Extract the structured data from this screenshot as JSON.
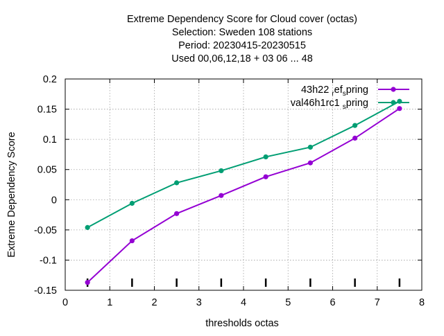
{
  "chart_data": {
    "type": "line",
    "title_lines": [
      "Extreme Dependency Score  for Cloud cover (octas)",
      "Selection: Sweden    108 stations",
      "Period: 20230415-20230515",
      "Used  00,06,12,18  + 03 06 ... 48"
    ],
    "xlabel": "thresholds octas",
    "ylabel": "Extreme Dependency Score",
    "xlim": [
      0,
      8
    ],
    "ylim": [
      -0.15,
      0.2
    ],
    "xticks": [
      0,
      1,
      2,
      3,
      4,
      5,
      6,
      7,
      8
    ],
    "xtick_labels": [
      "0",
      "1",
      "2",
      "3",
      "4",
      "5",
      "6",
      "7",
      "8"
    ],
    "yticks": [
      -0.15,
      -0.1,
      -0.05,
      0,
      0.05,
      0.1,
      0.15,
      0.2
    ],
    "ytick_labels": [
      "-0.15",
      "-0.1",
      "-0.05",
      "0",
      "0.05",
      "0.1",
      "0.15",
      "0.2"
    ],
    "grid": true,
    "legend_position": "top-right",
    "threshold_marks_x": [
      0.5,
      1.5,
      2.5,
      3.5,
      4.5,
      5.5,
      6.5,
      7.5
    ],
    "x": [
      0.5,
      1.5,
      2.5,
      3.5,
      4.5,
      5.5,
      6.5,
      7.5
    ],
    "series": [
      {
        "name": "43h22_ref_spring",
        "legend_parts": [
          "43h22 ",
          "r",
          "ef",
          "s",
          "pring"
        ],
        "color": "#9400d3",
        "values": [
          -0.137,
          -0.068,
          -0.023,
          0.007,
          0.038,
          0.061,
          0.102,
          0.151
        ]
      },
      {
        "name": "val46h1rc1_spring",
        "legend_parts": [
          "val46h1rc1 ",
          "s",
          "pring"
        ],
        "color": "#009e73",
        "values": [
          -0.046,
          -0.006,
          0.028,
          0.048,
          0.071,
          0.087,
          0.123,
          0.163
        ]
      }
    ]
  }
}
